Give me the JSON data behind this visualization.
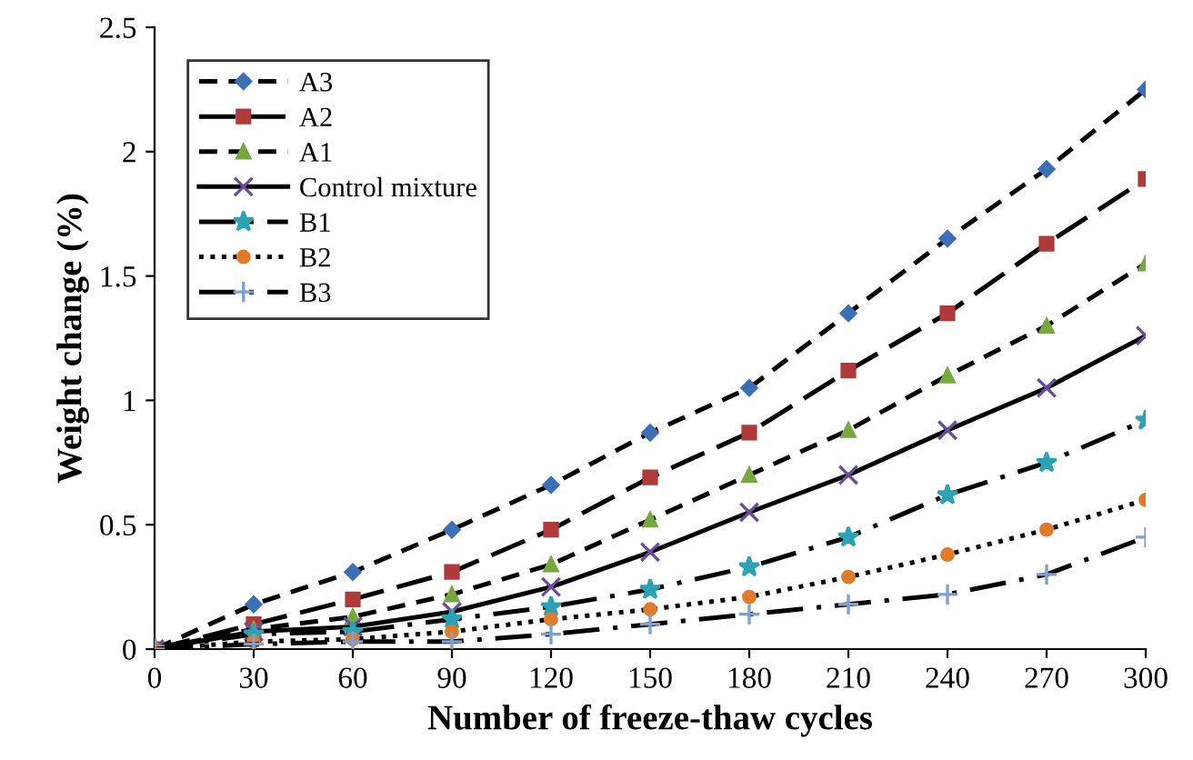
{
  "chart_data": {
    "type": "line",
    "xlabel": "Number of freeze-thaw cycles",
    "ylabel": "Weight change (%)",
    "x": [
      0,
      30,
      60,
      90,
      120,
      150,
      180,
      210,
      240,
      270,
      300
    ],
    "xlim": [
      0,
      300
    ],
    "xticks": [
      0,
      30,
      60,
      90,
      120,
      150,
      180,
      210,
      240,
      270,
      300
    ],
    "ylim": [
      0,
      2.5
    ],
    "yticks": [
      0,
      0.5,
      1,
      1.5,
      2,
      2.5
    ],
    "grid": false,
    "legend": "top left",
    "series": [
      {
        "name": "A3",
        "color": "#3b6fb6",
        "marker": "diamond",
        "line_style": "dashed",
        "values": [
          0,
          0.18,
          0.31,
          0.48,
          0.66,
          0.87,
          1.05,
          1.35,
          1.65,
          1.93,
          2.25
        ]
      },
      {
        "name": "A2",
        "color": "#b03a3a",
        "marker": "square",
        "line_style": "longdash",
        "values": [
          0,
          0.1,
          0.2,
          0.31,
          0.48,
          0.69,
          0.87,
          1.12,
          1.35,
          1.63,
          1.89
        ]
      },
      {
        "name": "A1",
        "color": "#77a83f",
        "marker": "triangle",
        "line_style": "dashed",
        "values": [
          0,
          0.08,
          0.13,
          0.22,
          0.34,
          0.52,
          0.7,
          0.88,
          1.1,
          1.3,
          1.55
        ]
      },
      {
        "name": "Control mixture",
        "color": "#6b4c9a",
        "marker": "cross",
        "line_style": "solid",
        "values": [
          0,
          0.07,
          0.09,
          0.15,
          0.25,
          0.39,
          0.55,
          0.7,
          0.88,
          1.05,
          1.26
        ]
      },
      {
        "name": "B1",
        "color": "#2ba3b5",
        "marker": "star",
        "line_style": "dashdot",
        "values": [
          0,
          0.06,
          0.07,
          0.12,
          0.17,
          0.24,
          0.33,
          0.45,
          0.62,
          0.75,
          0.92
        ]
      },
      {
        "name": "B2",
        "color": "#e07b2a",
        "marker": "circle",
        "line_style": "dotted",
        "values": [
          0,
          0.03,
          0.04,
          0.07,
          0.12,
          0.16,
          0.21,
          0.29,
          0.38,
          0.48,
          0.6
        ]
      },
      {
        "name": "B3",
        "color": "#7f9fd0",
        "marker": "plus",
        "line_style": "dashdot",
        "values": [
          0,
          0.02,
          0.03,
          0.03,
          0.06,
          0.1,
          0.14,
          0.18,
          0.22,
          0.3,
          0.45
        ]
      }
    ]
  }
}
